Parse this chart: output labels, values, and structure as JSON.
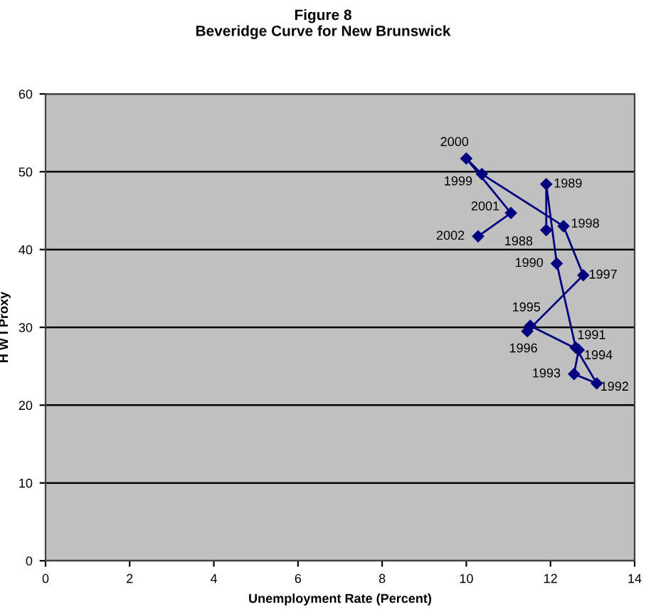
{
  "chart_data": {
    "type": "line",
    "title": "Figure 8\nBeveridge Curve for New Brunswick",
    "xlabel": "Unemployment Rate (Percent)",
    "ylabel": "H W I Proxy",
    "x": [
      11.9,
      11.9,
      12.15,
      12.6,
      13.1,
      12.56,
      12.67,
      11.52,
      11.45,
      12.78,
      12.31,
      10.37,
      10.0,
      11.06,
      10.28
    ],
    "series": [
      {
        "color": "#000080",
        "values": [
          42.5,
          48.4,
          38.2,
          27.4,
          22.8,
          24.0,
          27.1,
          30.2,
          29.5,
          36.7,
          43.0,
          49.7,
          51.7,
          44.7,
          41.7
        ]
      }
    ],
    "annotations": [
      {
        "text": "1988",
        "x": 11.9,
        "y": 42.5
      },
      {
        "text": "1989",
        "x": 11.9,
        "y": 48.4
      },
      {
        "text": "1990",
        "x": 12.15,
        "y": 38.2
      },
      {
        "text": "1991",
        "x": 12.6,
        "y": 27.4
      },
      {
        "text": "1992",
        "x": 13.1,
        "y": 22.8
      },
      {
        "text": "1993",
        "x": 12.56,
        "y": 24.0
      },
      {
        "text": "1994",
        "x": 12.67,
        "y": 27.1
      },
      {
        "text": "1995",
        "x": 11.52,
        "y": 30.2
      },
      {
        "text": "1996",
        "x": 11.45,
        "y": 29.5
      },
      {
        "text": "1997",
        "x": 12.78,
        "y": 36.7
      },
      {
        "text": "1998",
        "x": 12.31,
        "y": 43.0
      },
      {
        "text": "1999",
        "x": 10.37,
        "y": 49.7
      },
      {
        "text": "2000",
        "x": 10.0,
        "y": 51.7
      },
      {
        "text": "2001",
        "x": 11.06,
        "y": 44.7
      },
      {
        "text": "2002",
        "x": 10.28,
        "y": 41.7
      }
    ],
    "xlim": [
      0,
      14
    ],
    "xticks": [
      0,
      2,
      4,
      6,
      8,
      10,
      12,
      14
    ],
    "ylim": [
      0,
      60
    ],
    "yticks": [
      0,
      10,
      20,
      30,
      40,
      50,
      60
    ],
    "grid": "y",
    "marker": "diamond",
    "line_style": "solid",
    "legend": false
  }
}
